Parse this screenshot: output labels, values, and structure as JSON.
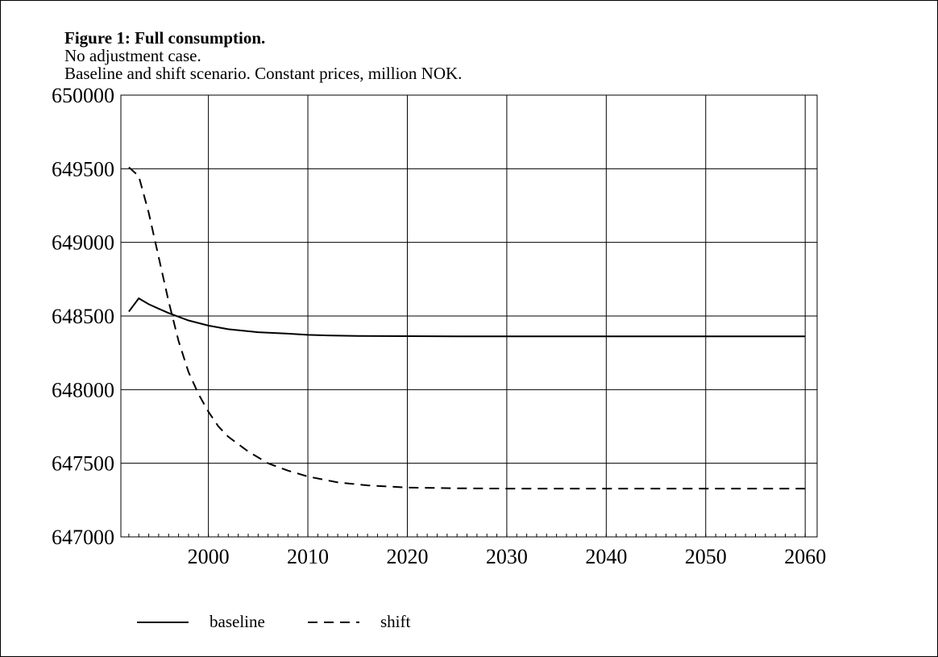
{
  "chart_data": {
    "type": "line",
    "title": "Figure 1: Full consumption.",
    "subtitle_lines": [
      "No adjustment case.",
      "Baseline and shift scenario. Constant prices, million NOK."
    ],
    "xlabel": "",
    "ylabel": "",
    "xlim": [
      1991.2,
      2061.2
    ],
    "ylim": [
      647000,
      650000
    ],
    "x_ticks": [
      2000,
      2010,
      2020,
      2030,
      2040,
      2050,
      2060
    ],
    "y_ticks": [
      647000,
      647500,
      648000,
      648500,
      649000,
      649500,
      650000
    ],
    "grid": true,
    "legend_position": "bottom-left",
    "series": [
      {
        "name": "baseline",
        "style": "solid",
        "color": "#000000",
        "x": [
          1992,
          1993,
          1994,
          1995,
          1996,
          1998,
          2000,
          2002,
          2005,
          2008,
          2010,
          2012,
          2015,
          2020,
          2025,
          2030,
          2040,
          2050,
          2060
        ],
        "y": [
          648530,
          648620,
          648580,
          648550,
          648520,
          648470,
          648435,
          648410,
          648390,
          648380,
          648372,
          648368,
          648365,
          648363,
          648362,
          648362,
          648362,
          648362,
          648362
        ]
      },
      {
        "name": "shift",
        "style": "dashed",
        "color": "#000000",
        "x": [
          1992,
          1993,
          1994,
          1995,
          1996,
          1997,
          1998,
          1999,
          2000,
          2001,
          2002,
          2004,
          2006,
          2008,
          2010,
          2013,
          2016,
          2020,
          2025,
          2030,
          2040,
          2050,
          2060
        ],
        "y": [
          649510,
          649450,
          649200,
          648900,
          648600,
          648330,
          648120,
          647970,
          647850,
          647750,
          647680,
          647580,
          647500,
          647450,
          647410,
          647370,
          647350,
          647335,
          647330,
          647328,
          647328,
          647328,
          647328
        ]
      }
    ]
  }
}
